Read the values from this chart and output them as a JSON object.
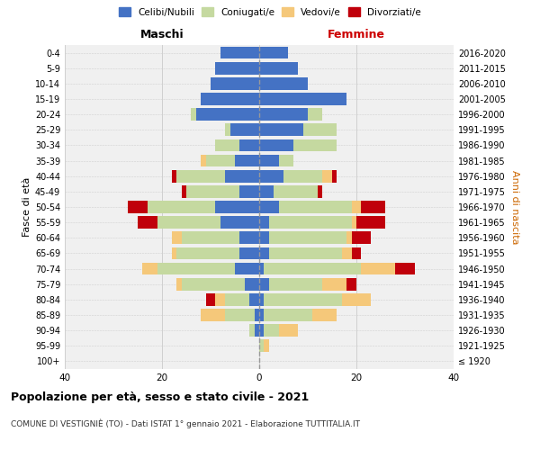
{
  "age_groups": [
    "100+",
    "95-99",
    "90-94",
    "85-89",
    "80-84",
    "75-79",
    "70-74",
    "65-69",
    "60-64",
    "55-59",
    "50-54",
    "45-49",
    "40-44",
    "35-39",
    "30-34",
    "25-29",
    "20-24",
    "15-19",
    "10-14",
    "5-9",
    "0-4"
  ],
  "birth_years": [
    "≤ 1920",
    "1921-1925",
    "1926-1930",
    "1931-1935",
    "1936-1940",
    "1941-1945",
    "1946-1950",
    "1951-1955",
    "1956-1960",
    "1961-1965",
    "1966-1970",
    "1971-1975",
    "1976-1980",
    "1981-1985",
    "1986-1990",
    "1991-1995",
    "1996-2000",
    "2001-2005",
    "2006-2010",
    "2011-2015",
    "2016-2020"
  ],
  "colors": {
    "celibi": "#4472C4",
    "coniugati": "#C5D9A0",
    "vedovi": "#F5C87A",
    "divorziati": "#C0000B"
  },
  "maschi": {
    "celibi": [
      0,
      0,
      1,
      1,
      2,
      3,
      5,
      4,
      4,
      8,
      9,
      4,
      7,
      5,
      4,
      6,
      13,
      12,
      10,
      9,
      8
    ],
    "coniugati": [
      0,
      0,
      1,
      6,
      5,
      13,
      16,
      13,
      12,
      13,
      14,
      11,
      10,
      6,
      5,
      1,
      1,
      0,
      0,
      0,
      0
    ],
    "vedovi": [
      0,
      0,
      0,
      5,
      2,
      1,
      3,
      1,
      2,
      0,
      0,
      0,
      0,
      1,
      0,
      0,
      0,
      0,
      0,
      0,
      0
    ],
    "divorziati": [
      0,
      0,
      0,
      0,
      2,
      0,
      0,
      0,
      0,
      4,
      4,
      1,
      1,
      0,
      0,
      0,
      0,
      0,
      0,
      0,
      0
    ]
  },
  "femmine": {
    "celibi": [
      0,
      0,
      1,
      1,
      1,
      2,
      1,
      2,
      2,
      2,
      4,
      3,
      5,
      4,
      7,
      9,
      10,
      18,
      10,
      8,
      6
    ],
    "coniugati": [
      0,
      1,
      3,
      10,
      16,
      11,
      20,
      15,
      16,
      17,
      15,
      9,
      8,
      3,
      9,
      7,
      3,
      0,
      0,
      0,
      0
    ],
    "vedovi": [
      0,
      1,
      4,
      5,
      6,
      5,
      7,
      2,
      1,
      1,
      2,
      0,
      2,
      0,
      0,
      0,
      0,
      0,
      0,
      0,
      0
    ],
    "divorziati": [
      0,
      0,
      0,
      0,
      0,
      2,
      4,
      2,
      4,
      6,
      5,
      1,
      1,
      0,
      0,
      0,
      0,
      0,
      0,
      0,
      0
    ]
  },
  "title": "Popolazione per età, sesso e stato civile - 2021",
  "subtitle": "COMUNE DI VESTIGNIÈ (TO) - Dati ISTAT 1° gennaio 2021 - Elaborazione TUTTITALIA.IT",
  "xlabel_left": "Maschi",
  "xlabel_right": "Femmine",
  "ylabel_left": "Fasce di età",
  "ylabel_right": "Anni di nascita",
  "xlim": 40,
  "legend_labels": [
    "Celibi/Nubili",
    "Coniugati/e",
    "Vedovi/e",
    "Divorziati/e"
  ],
  "bg_color": "#f0f0f0",
  "grid_color": "#d0d0d0"
}
